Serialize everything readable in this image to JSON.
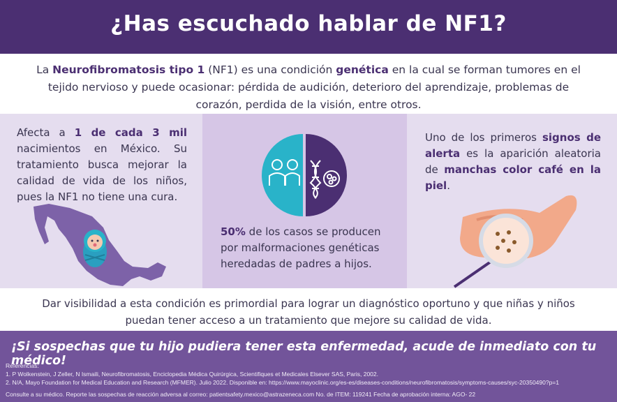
{
  "header": {
    "title": "¿Has escuchado hablar de NF1?"
  },
  "intro": {
    "t1": "La ",
    "b1": "Neurofibromatosis tipo 1",
    "t2": " (NF1) es una condición ",
    "b2": "genética",
    "t3": " en la cual se forman tumores en el tejido nervioso y puede ocasionar: pérdida de audición, deterioro del aprendizaje, problemas de corazón, perdida de la visión, entre otros."
  },
  "panel_left": {
    "t1": "Afecta a ",
    "b1": "1 de cada 3 mil",
    "t2": " nacimientos en México. Su tratamiento busca mejorar la calidad de vida de los niños, pues la NF1 no tiene una cura.",
    "icons": [
      "mexico-map-icon",
      "baby-icon"
    ]
  },
  "panel_center": {
    "b1": "50%",
    "t1": " de los casos se producen por malformaciones genéticas heredadas de padres a hijos.",
    "icons": [
      "parents-icon",
      "dna-icon",
      "cell-icon"
    ]
  },
  "panel_right": {
    "t1": "Uno de los primeros ",
    "b1": "signos de alerta",
    "t2": " es la aparición aleatoria de ",
    "b2": "manchas color café en la piel",
    "t3": ".",
    "icons": [
      "hand-icon",
      "magnifier-icon"
    ]
  },
  "bottom_text": "Dar visibilidad a esta condición es primordial para lograr un diagnóstico oportuno y que niñas y niños puedan tener acceso a un tratamiento que mejore su calidad de vida.",
  "footer": {
    "cta": "¡Si sospechas que tu hijo pudiera tener esta enfermedad, acude de inmediato con tu médico!",
    "refs_title": "Referencias:",
    "ref1": "1. P Wolkenstein, J Zeller, N Ismaili, Neurofibromatosis, Enciclopedia Médica Quirúrgica, Scientifiques et Medicales Elsever SAS, Paris, 2002.",
    "ref2": "2. N/A, Mayo Foundation for Medical Education and Research (MFMER). Julio 2022. Disponible en: https://www.mayoclinic.org/es-es/diseases-conditions/neurofibromatosis/symptoms-causes/syc-20350490?p=1",
    "consult": "Consulte a su médico. Reporte las sospechas de reacción adversa al correo: patientsafety.mexico@astrazeneca.com No. de ITEM: 119241 Fecha de aprobación interna: AGO- 22"
  },
  "colors": {
    "dark_purple": "#4b2f72",
    "teal": "#29b3c9",
    "light_lavender": "#e5ddef",
    "mid_lavender": "#d6c6e6",
    "footer_purple": "#72549a"
  }
}
